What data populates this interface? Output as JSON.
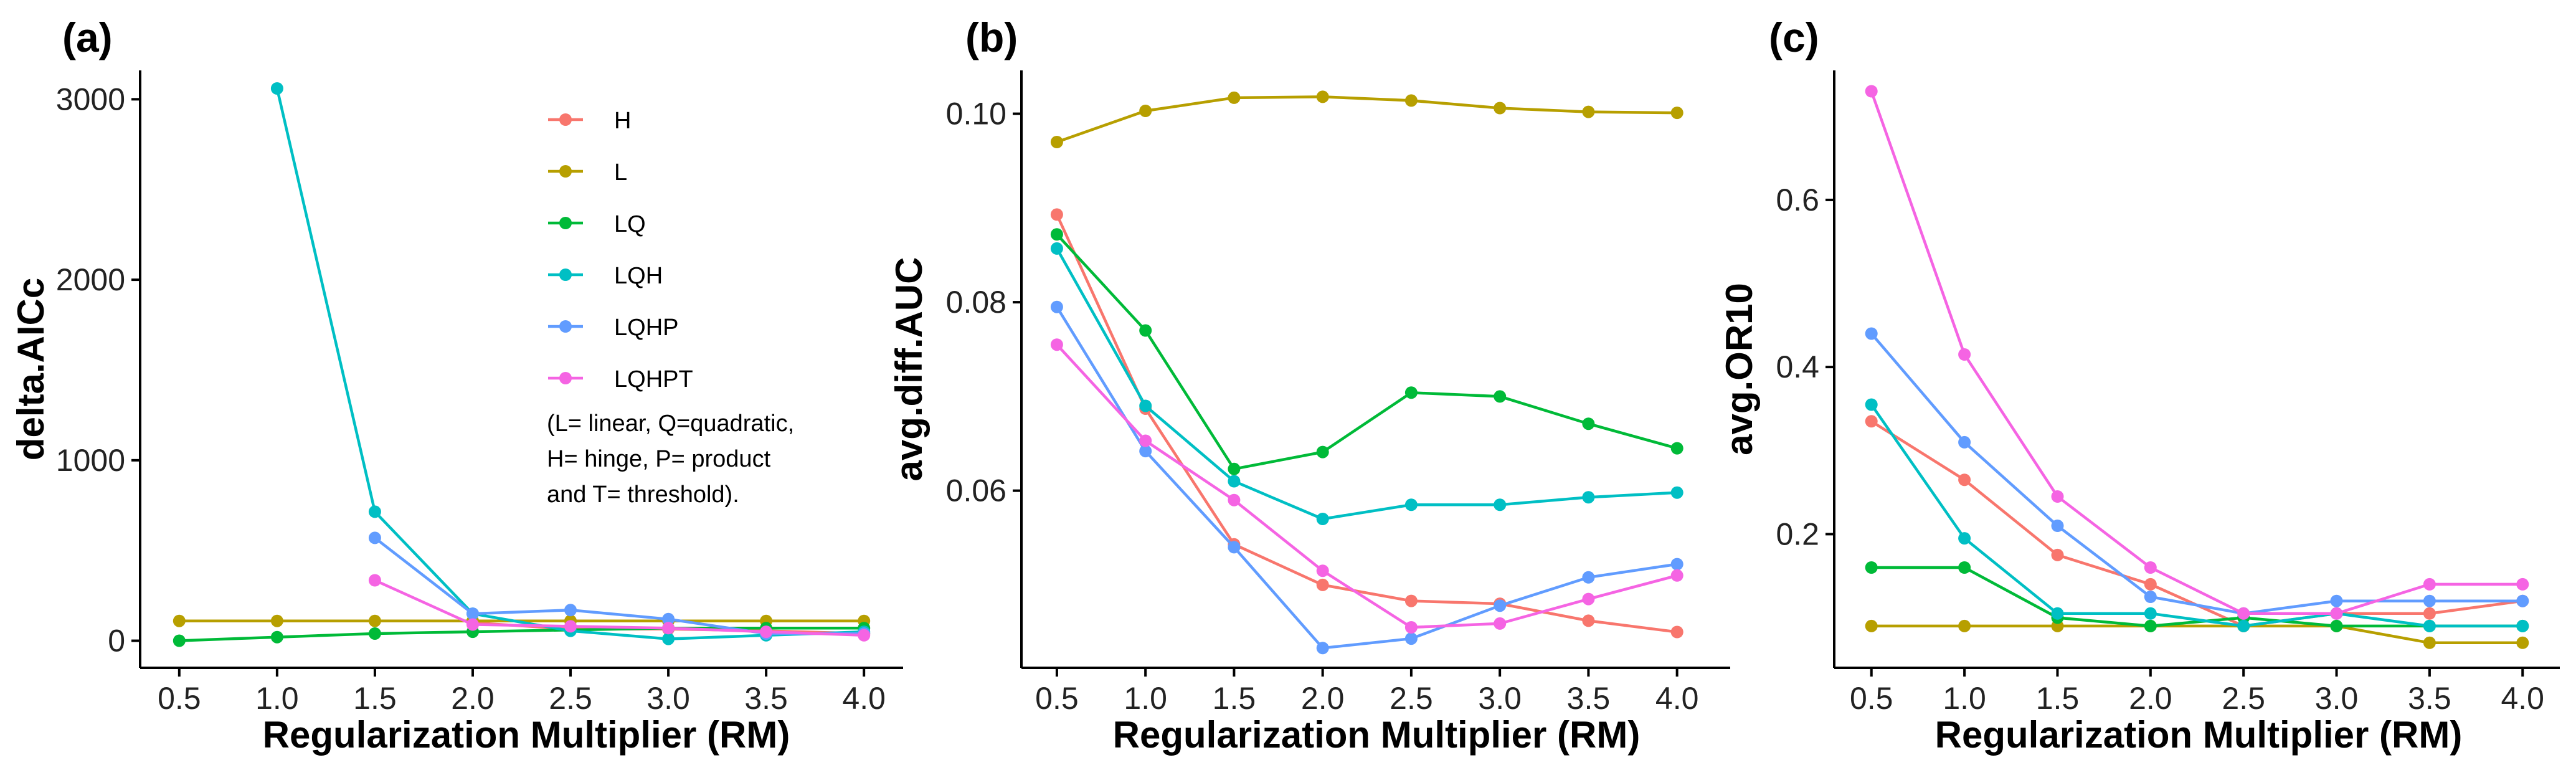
{
  "legend": {
    "items": [
      {
        "label": "H",
        "color": "#F8766D"
      },
      {
        "label": "L",
        "color": "#B79F00"
      },
      {
        "label": "LQ",
        "color": "#00BA38"
      },
      {
        "label": "LQH",
        "color": "#00BFC4"
      },
      {
        "label": "LQHP",
        "color": "#619CFF"
      },
      {
        "label": "LQHPT",
        "color": "#F564E3"
      }
    ],
    "note": [
      "(L= linear, Q=quadratic,",
      "H= hinge, P= product",
      "and T= threshold)."
    ]
  },
  "chart_data": [
    {
      "panel": "(a)",
      "type": "line",
      "xlabel": "Regularization Multiplier (RM)",
      "ylabel": "delta.AICc",
      "x": [
        0.5,
        1.0,
        1.5,
        2.0,
        2.5,
        3.0,
        3.5,
        4.0
      ],
      "xticks": [
        "0.5",
        "1.0",
        "1.5",
        "2.0",
        "2.5",
        "3.0",
        "3.5",
        "4.0"
      ],
      "yticks": [
        0,
        1000,
        2000,
        3000
      ],
      "ytick_labels": [
        "0",
        "1000",
        "2000",
        "3000"
      ],
      "xlim": [
        0.3,
        4.2
      ],
      "ylim": [
        -150,
        3160
      ],
      "series": [
        {
          "name": "H",
          "values": [
            null,
            null,
            null,
            100,
            65,
            65,
            55,
            40
          ]
        },
        {
          "name": "L",
          "values": [
            110,
            110,
            110,
            110,
            110,
            110,
            110,
            110
          ]
        },
        {
          "name": "LQ",
          "values": [
            0,
            20,
            40,
            50,
            60,
            70,
            70,
            70
          ]
        },
        {
          "name": "LQH",
          "values": [
            null,
            3060,
            715,
            150,
            55,
            10,
            30,
            50
          ]
        },
        {
          "name": "LQHP",
          "values": [
            null,
            null,
            570,
            150,
            170,
            120,
            40,
            40
          ]
        },
        {
          "name": "LQHPT",
          "values": [
            null,
            null,
            335,
            90,
            80,
            70,
            50,
            30
          ]
        }
      ]
    },
    {
      "panel": "(b)",
      "type": "line",
      "xlabel": "Regularization Multiplier (RM)",
      "ylabel": "avg.diff.AUC",
      "x": [
        0.5,
        1.0,
        1.5,
        2.0,
        2.5,
        3.0,
        3.5,
        4.0
      ],
      "xticks": [
        "0.5",
        "1.0",
        "1.5",
        "2.0",
        "2.5",
        "3.0",
        "3.5",
        "4.0"
      ],
      "yticks": [
        0.06,
        0.08,
        0.1
      ],
      "ytick_labels": [
        "0.06",
        "0.08",
        "0.10"
      ],
      "xlim": [
        0.3,
        4.3
      ],
      "ylim": [
        0.0412,
        0.1046
      ],
      "series": [
        {
          "name": "H",
          "values": [
            0.0893,
            0.0687,
            0.0543,
            0.05,
            0.0483,
            0.048,
            0.0462,
            0.045
          ]
        },
        {
          "name": "L",
          "values": [
            0.097,
            0.1003,
            0.1017,
            0.1018,
            0.1014,
            0.1006,
            0.1002,
            0.1001
          ]
        },
        {
          "name": "LQ",
          "values": [
            0.0872,
            0.077,
            0.0623,
            0.0641,
            0.0704,
            0.07,
            0.0671,
            0.0645
          ]
        },
        {
          "name": "LQH",
          "values": [
            0.0857,
            0.069,
            0.061,
            0.057,
            0.0585,
            0.0585,
            0.0593,
            0.0598
          ]
        },
        {
          "name": "LQHP",
          "values": [
            0.0795,
            0.0642,
            0.054,
            0.0433,
            0.0443,
            0.0478,
            0.0508,
            0.0522
          ]
        },
        {
          "name": "LQHPT",
          "values": [
            0.0755,
            0.0653,
            0.059,
            0.0515,
            0.0455,
            0.0459,
            0.0485,
            0.051
          ]
        }
      ]
    },
    {
      "panel": "(c)",
      "type": "line",
      "xlabel": "Regularization Multiplier (RM)",
      "ylabel": "avg.OR10",
      "x": [
        0.5,
        1.0,
        1.5,
        2.0,
        2.5,
        3.0,
        3.5,
        4.0
      ],
      "xticks": [
        "0.5",
        "1.0",
        "1.5",
        "2.0",
        "2.5",
        "3.0",
        "3.5",
        "4.0"
      ],
      "yticks": [
        0.2,
        0.4,
        0.6
      ],
      "ytick_labels": [
        "0.2",
        "0.4",
        "0.6"
      ],
      "xlim": [
        0.3,
        4.2
      ],
      "ylim": [
        0.04,
        0.755
      ],
      "series": [
        {
          "name": "H",
          "values": [
            0.335,
            0.265,
            0.175,
            0.14,
            0.09,
            0.105,
            0.105,
            0.12
          ]
        },
        {
          "name": "L",
          "values": [
            0.09,
            0.09,
            0.09,
            0.09,
            0.09,
            0.09,
            0.07,
            0.07
          ]
        },
        {
          "name": "LQ",
          "values": [
            0.16,
            0.16,
            0.1,
            0.09,
            0.1,
            0.09,
            0.09,
            0.09
          ]
        },
        {
          "name": "LQH",
          "values": [
            0.355,
            0.195,
            0.105,
            0.105,
            0.09,
            0.105,
            0.09,
            0.09
          ]
        },
        {
          "name": "LQHP",
          "values": [
            0.44,
            0.31,
            0.21,
            0.125,
            0.105,
            0.12,
            0.12,
            0.12
          ]
        },
        {
          "name": "LQHPT",
          "values": [
            0.73,
            0.415,
            0.245,
            0.16,
            0.105,
            0.105,
            0.14,
            0.14
          ]
        }
      ]
    }
  ]
}
